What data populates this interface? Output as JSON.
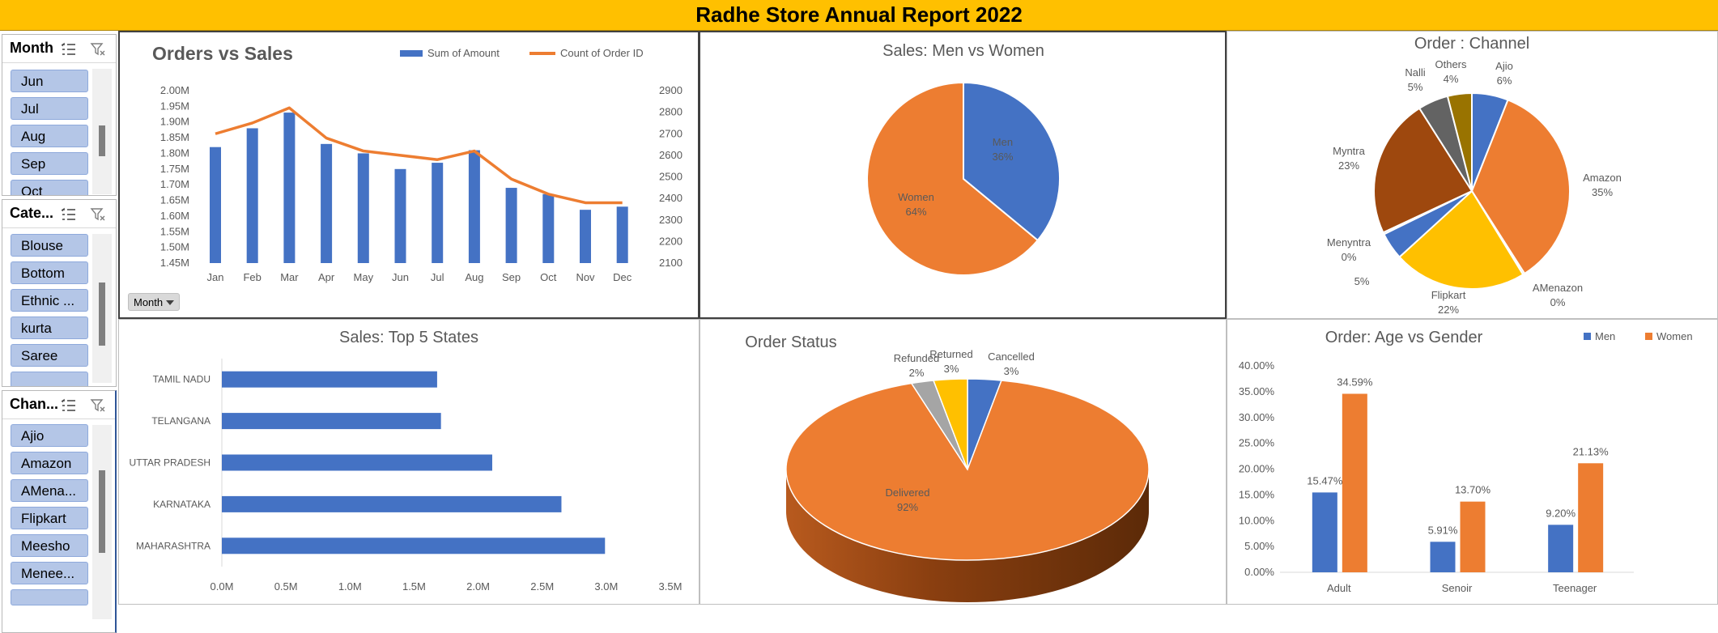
{
  "header": {
    "title": "Radhe Store Annual Report 2022"
  },
  "slicers": [
    {
      "title": "Month",
      "items": [
        "Jun",
        "Jul",
        "Aug",
        "Sep",
        "Oct"
      ]
    },
    {
      "title": "Cate...",
      "items": [
        "Blouse",
        "Bottom",
        "Ethnic ...",
        "kurta",
        "Saree"
      ]
    },
    {
      "title": "Chan...",
      "items": [
        "Ajio",
        "Amazon",
        "AMena...",
        "Flipkart",
        "Meesho",
        "Menee..."
      ]
    }
  ],
  "month_button": {
    "label": "Month"
  },
  "colors": {
    "blue": "#4472C4",
    "orange": "#ED7D31",
    "gold": "#FFC000",
    "gray": "#A5A5A5",
    "lightblue": "#5B9BD5",
    "brown": "#9E480E",
    "darkgray": "#636363",
    "olive": "#997300"
  },
  "chart_data": [
    {
      "id": "orders_vs_sales",
      "type": "bar",
      "title": "Orders vs Sales",
      "categories": [
        "Jan",
        "Feb",
        "Mar",
        "Apr",
        "May",
        "Jun",
        "Jul",
        "Aug",
        "Sep",
        "Oct",
        "Nov",
        "Dec"
      ],
      "series": [
        {
          "name": "Sum of Amount",
          "type": "bar",
          "axis": "left",
          "values": [
            1.82,
            1.88,
            1.93,
            1.83,
            1.8,
            1.75,
            1.77,
            1.81,
            1.69,
            1.67,
            1.62,
            1.63
          ]
        },
        {
          "name": "Count of Order ID",
          "type": "line",
          "axis": "right",
          "values": [
            2700,
            2750,
            2820,
            2680,
            2620,
            2600,
            2580,
            2620,
            2490,
            2420,
            2380,
            2380
          ]
        }
      ],
      "yticks_left": [
        "2.00M",
        "1.95M",
        "1.90M",
        "1.85M",
        "1.80M",
        "1.75M",
        "1.70M",
        "1.65M",
        "1.60M",
        "1.55M",
        "1.50M",
        "1.45M"
      ],
      "ylim_left": [
        1.45,
        2.0
      ],
      "yticks_right": [
        "2900",
        "2800",
        "2700",
        "2600",
        "2500",
        "2400",
        "2300",
        "2200",
        "2100"
      ],
      "ylim_right": [
        2100,
        2900
      ],
      "legend": "top-right"
    },
    {
      "id": "men_vs_women",
      "type": "pie",
      "title": "Sales: Men vs Women",
      "slices": [
        {
          "label": "Men",
          "value": 36,
          "text": "36%"
        },
        {
          "label": "Women",
          "value": 64,
          "text": "64%"
        }
      ]
    },
    {
      "id": "order_channel",
      "type": "pie",
      "title": "Order : Channel",
      "slices": [
        {
          "label": "Ajio",
          "value": 6,
          "text": "6%"
        },
        {
          "label": "Amazon",
          "value": 35,
          "text": "35%"
        },
        {
          "label": "AMenazon",
          "value": 0.3,
          "text": "0%"
        },
        {
          "label": "Flipkart",
          "value": 22,
          "text": "22%"
        },
        {
          "label": "",
          "value": 4.5,
          "text": "5%"
        },
        {
          "label": "Menyntra",
          "value": 0.3,
          "text": "0%"
        },
        {
          "label": "Myntra",
          "value": 23,
          "text": "23%"
        },
        {
          "label": "Nalli",
          "value": 5,
          "text": "5%"
        },
        {
          "label": "Others",
          "value": 4,
          "text": "4%"
        }
      ]
    },
    {
      "id": "top5_states",
      "type": "bar",
      "orientation": "horizontal",
      "title": "Sales: Top 5 States",
      "categories": [
        "TAMIL NADU",
        "TELANGANA",
        "UTTAR PRADESH",
        "KARNATAKA",
        "MAHARASHTRA"
      ],
      "values": [
        1.68,
        1.71,
        2.11,
        2.65,
        2.99
      ],
      "xticks": [
        "0.0M",
        "0.5M",
        "1.0M",
        "1.5M",
        "2.0M",
        "2.5M",
        "3.0M",
        "3.5M"
      ],
      "xlim": [
        0,
        3.5
      ]
    },
    {
      "id": "order_status",
      "type": "pie",
      "title": "Order Status",
      "slices": [
        {
          "label": "Cancelled",
          "value": 3,
          "text": "3%"
        },
        {
          "label": "Delivered",
          "value": 92,
          "text": "92%"
        },
        {
          "label": "Refunded",
          "value": 2,
          "text": "2%"
        },
        {
          "label": "Returned",
          "value": 3,
          "text": "3%"
        }
      ]
    },
    {
      "id": "age_vs_gender",
      "type": "bar",
      "title": "Order: Age vs Gender",
      "categories": [
        "Adult",
        "Senoir",
        "Teenager"
      ],
      "series": [
        {
          "name": "Men",
          "values": [
            15.47,
            5.91,
            9.2
          ],
          "labels": [
            "15.47%",
            "5.91%",
            "9.20%"
          ]
        },
        {
          "name": "Women",
          "values": [
            34.59,
            13.7,
            21.13
          ],
          "labels": [
            "34.59%",
            "13.70%",
            "21.13%"
          ]
        }
      ],
      "yticks": [
        "40.00%",
        "35.00%",
        "30.00%",
        "25.00%",
        "20.00%",
        "15.00%",
        "10.00%",
        "5.00%",
        "0.00%"
      ],
      "ylim": [
        0,
        40
      ],
      "legend": "top-right"
    }
  ]
}
